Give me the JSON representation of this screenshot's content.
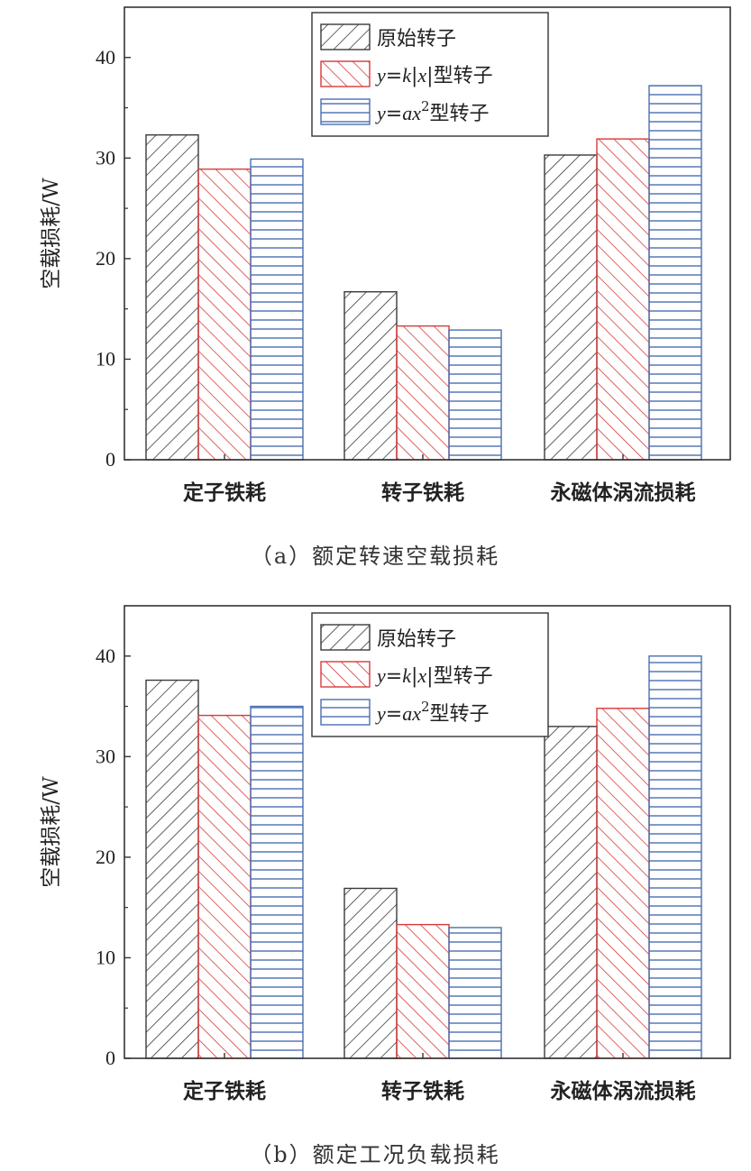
{
  "chart_data": [
    {
      "type": "bar",
      "title": "",
      "caption": "（a）额定转速空载损耗",
      "ylabel": "空载损耗/W",
      "xlabel": "",
      "ylim": [
        0,
        45
      ],
      "yticks": [
        0,
        10,
        20,
        30,
        40
      ],
      "categories": [
        "定子铁耗",
        "转子铁耗",
        "永磁体涡流损耗"
      ],
      "series": [
        {
          "name": "原始转子",
          "values": [
            32.3,
            16.7,
            30.3
          ]
        },
        {
          "name": "y=k|x|型转子",
          "values": [
            28.9,
            13.3,
            31.9
          ]
        },
        {
          "name": "y=ax²型转子",
          "values": [
            29.9,
            12.9,
            37.2
          ]
        }
      ],
      "legend_position": "top-center"
    },
    {
      "type": "bar",
      "title": "",
      "caption": "（b）额定工况负载损耗",
      "ylabel": "空载损耗/W",
      "xlabel": "",
      "ylim": [
        0,
        45
      ],
      "yticks": [
        0,
        10,
        20,
        30,
        40
      ],
      "categories": [
        "定子铁耗",
        "转子铁耗",
        "永磁体涡流损耗"
      ],
      "series": [
        {
          "name": "原始转子",
          "values": [
            37.6,
            16.9,
            33.0
          ]
        },
        {
          "name": "y=k|x|型转子",
          "values": [
            34.1,
            13.3,
            34.8
          ]
        },
        {
          "name": "y=ax²型转子",
          "values": [
            35.0,
            13.0,
            40.0
          ]
        }
      ],
      "legend_position": "top-center"
    }
  ],
  "legend": {
    "s1": {
      "text": "原始转子"
    },
    "s2": {
      "var": "y",
      "eq": "=",
      "k": "k",
      "bar1": "|",
      "x": "x",
      "bar2": "|",
      "suffix": "型转子"
    },
    "s3": {
      "var": "y",
      "eq": "=",
      "ax": "ax",
      "exp": "2",
      "suffix": "型转子"
    }
  },
  "colors": {
    "s1": "#3a3a3a",
    "s2": "#d93a3a",
    "s3": "#4a6fb0",
    "axis": "#333333"
  }
}
